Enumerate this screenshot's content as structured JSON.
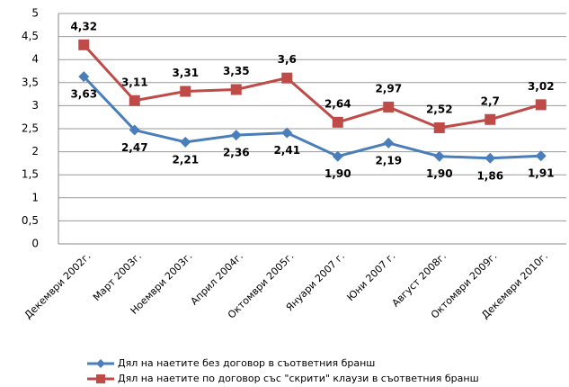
{
  "chart_data": {
    "type": "line",
    "categories": [
      "Декември 2002г.",
      "Март 2003г.",
      "Ноември 2003г.",
      "Април 2004г.",
      "Октомври 2005г.",
      "Януари 2007 г.",
      "Юни 2007 г.",
      "Август 2008г.",
      "Октомври 2009г.",
      "Декември 2010г."
    ],
    "series": [
      {
        "name": "Дял на наетите без договор в съответния бранш",
        "color": "#4a7ebb",
        "marker": "diamond",
        "values": [
          3.63,
          2.47,
          2.21,
          2.36,
          2.41,
          1.9,
          2.19,
          1.9,
          1.86,
          1.91
        ],
        "value_labels": [
          "3,63",
          "2,47",
          "2,21",
          "2,36",
          "2,41",
          "1,90",
          "2,19",
          "1,90",
          "1,86",
          "1,91"
        ]
      },
      {
        "name": "Дял на наетите по договор със \"скрити\" клаузи в съответния бранш",
        "color": "#be4b48",
        "marker": "square",
        "values": [
          4.32,
          3.11,
          3.31,
          3.35,
          3.6,
          2.64,
          2.97,
          2.52,
          2.7,
          3.02
        ],
        "value_labels": [
          "4,32",
          "3,11",
          "3,31",
          "3,35",
          "3,6",
          "2,64",
          "2,97",
          "2,52",
          "2,7",
          "3,02"
        ]
      }
    ],
    "ylim": [
      0,
      5
    ],
    "yticks": [
      0,
      {
        "value": 0.5,
        "label": "0,5"
      },
      1,
      {
        "value": 1.5,
        "label": "1,5"
      },
      2,
      {
        "value": 2.5,
        "label": "2,5"
      },
      3,
      {
        "value": 3.5,
        "label": "3,5"
      },
      4,
      {
        "value": 4.5,
        "label": "4,5"
      },
      5
    ],
    "grid": true
  }
}
